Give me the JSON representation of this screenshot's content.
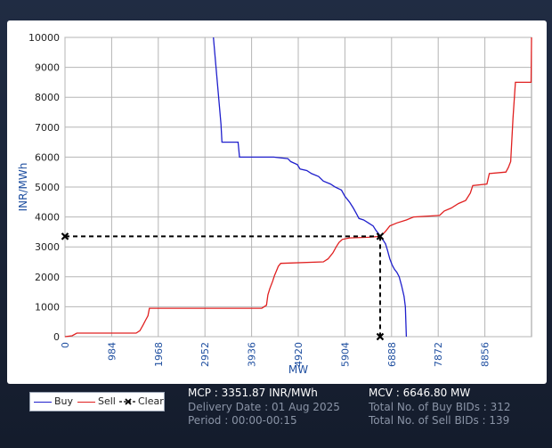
{
  "chart_data": {
    "type": "line",
    "title": "",
    "xlabel": "MW",
    "ylabel": "INR/MWh",
    "xlim": [
      0,
      9840
    ],
    "ylim": [
      0,
      10000
    ],
    "x_ticks": [
      "0",
      "984",
      "1968",
      "2952",
      "3936",
      "4920",
      "5904",
      "6888",
      "7872",
      "8856"
    ],
    "y_ticks": [
      "0",
      "1000",
      "2000",
      "3000",
      "4000",
      "5000",
      "6000",
      "7000",
      "8000",
      "9000",
      "10000"
    ],
    "grid": true,
    "legend_placement": "bottom-left",
    "series": [
      {
        "name": "Buy",
        "color": "#1f1fcc",
        "points": [
          [
            3130,
            10000
          ],
          [
            3290,
            7100
          ],
          [
            3310,
            6500
          ],
          [
            3650,
            6500
          ],
          [
            3680,
            6000
          ],
          [
            4400,
            6000
          ],
          [
            4700,
            5950
          ],
          [
            4760,
            5850
          ],
          [
            4900,
            5750
          ],
          [
            4960,
            5600
          ],
          [
            5100,
            5550
          ],
          [
            5200,
            5450
          ],
          [
            5350,
            5350
          ],
          [
            5450,
            5200
          ],
          [
            5600,
            5100
          ],
          [
            5700,
            5000
          ],
          [
            5830,
            4900
          ],
          [
            5900,
            4700
          ],
          [
            6000,
            4500
          ],
          [
            6080,
            4300
          ],
          [
            6150,
            4100
          ],
          [
            6200,
            3950
          ],
          [
            6300,
            3900
          ],
          [
            6400,
            3800
          ],
          [
            6500,
            3700
          ],
          [
            6560,
            3550
          ],
          [
            6620,
            3430
          ],
          [
            6646.8,
            3351.87
          ],
          [
            6700,
            3250
          ],
          [
            6760,
            3100
          ],
          [
            6800,
            2900
          ],
          [
            6850,
            2600
          ],
          [
            6900,
            2400
          ],
          [
            6950,
            2250
          ],
          [
            7000,
            2150
          ],
          [
            7050,
            2000
          ],
          [
            7100,
            1700
          ],
          [
            7150,
            1350
          ],
          [
            7180,
            1000
          ],
          [
            7200,
            0
          ]
        ]
      },
      {
        "name": "Sell",
        "color": "#e02020",
        "points": [
          [
            0,
            0
          ],
          [
            150,
            30
          ],
          [
            250,
            120
          ],
          [
            1500,
            120
          ],
          [
            1580,
            200
          ],
          [
            1650,
            400
          ],
          [
            1700,
            550
          ],
          [
            1750,
            700
          ],
          [
            1780,
            950
          ],
          [
            4150,
            950
          ],
          [
            4250,
            1050
          ],
          [
            4280,
            1400
          ],
          [
            4320,
            1600
          ],
          [
            4380,
            1850
          ],
          [
            4420,
            2050
          ],
          [
            4460,
            2200
          ],
          [
            4500,
            2350
          ],
          [
            4550,
            2450
          ],
          [
            5450,
            2500
          ],
          [
            5550,
            2600
          ],
          [
            5650,
            2800
          ],
          [
            5720,
            3000
          ],
          [
            5780,
            3150
          ],
          [
            5850,
            3250
          ],
          [
            6000,
            3300
          ],
          [
            6400,
            3320
          ],
          [
            6646.8,
            3351.87
          ],
          [
            6750,
            3500
          ],
          [
            6850,
            3700
          ],
          [
            7000,
            3800
          ],
          [
            7200,
            3900
          ],
          [
            7350,
            4000
          ],
          [
            7900,
            4050
          ],
          [
            8000,
            4200
          ],
          [
            8150,
            4300
          ],
          [
            8300,
            4450
          ],
          [
            8450,
            4550
          ],
          [
            8550,
            4800
          ],
          [
            8600,
            5050
          ],
          [
            8900,
            5100
          ],
          [
            8950,
            5450
          ],
          [
            9300,
            5500
          ],
          [
            9350,
            5650
          ],
          [
            9400,
            5850
          ],
          [
            9450,
            7300
          ],
          [
            9500,
            8500
          ],
          [
            9830,
            8500
          ],
          [
            9840,
            10000
          ]
        ]
      }
    ],
    "clear_point": {
      "x": 6646.8,
      "y": 3351.87,
      "name": "Clear"
    }
  },
  "legend": {
    "buy_label": "Buy",
    "sell_label": "Sell",
    "clear_label": "Clear",
    "buy_color": "#1f1fcc",
    "sell_color": "#e02020",
    "clear_color": "#000000"
  },
  "summary": {
    "mcp": "MCP : 3351.87 INR/MWh",
    "delivery_date": "Delivery Date : 01 Aug 2025",
    "period": "Period :  00:00-00:15",
    "mcv": "MCV : 6646.80 MW",
    "buy_bids": "Total No. of Buy BIDs : 312",
    "sell_bids": "Total No. of Sell BIDs : 139"
  }
}
